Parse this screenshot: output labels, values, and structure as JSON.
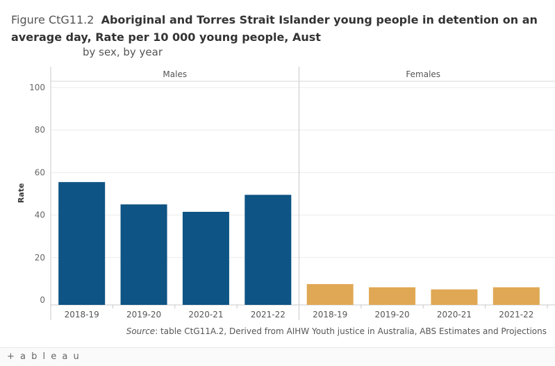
{
  "title": {
    "figure_number": "Figure CtG11.2",
    "text": "Aboriginal and Torres Strait Islander young people in detention on an average day, Rate per 10 000 young people, Aust",
    "subtitle": "by sex, by year"
  },
  "source": {
    "label": "Source",
    "text": ": table CtG11A.2, Derived from AIHW Youth justice in Australia, ABS Estimates and Projections"
  },
  "footer": {
    "logo_text": "+ a b l e a u"
  },
  "chart_data": {
    "type": "bar",
    "ylabel": "Rate",
    "ylim": [
      0,
      100
    ],
    "yticks": [
      0,
      20,
      40,
      60,
      80,
      100
    ],
    "grid": true,
    "categories": [
      "2018-19",
      "2019-20",
      "2020-21",
      "2021-22"
    ],
    "series": [
      {
        "name": "Males",
        "color": "#0e5484",
        "values": [
          55.5,
          45,
          41.5,
          49.5
        ]
      },
      {
        "name": "Females",
        "color": "#e0a854",
        "values": [
          7.5,
          6,
          5,
          6
        ]
      }
    ]
  }
}
